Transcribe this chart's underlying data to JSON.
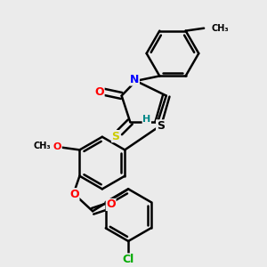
{
  "bg_color": "#ebebeb",
  "bond_color": "#000000",
  "bond_width": 1.8,
  "atom_colors": {
    "O": "#ff0000",
    "N": "#0000ff",
    "S_yellow": "#cccc00",
    "S_black": "#000000",
    "Cl": "#00aa00",
    "H": "#008888",
    "C": "#000000"
  },
  "figsize": [
    3.0,
    3.0
  ],
  "dpi": 100,
  "xlim": [
    0,
    10
  ],
  "ylim": [
    0,
    10
  ]
}
